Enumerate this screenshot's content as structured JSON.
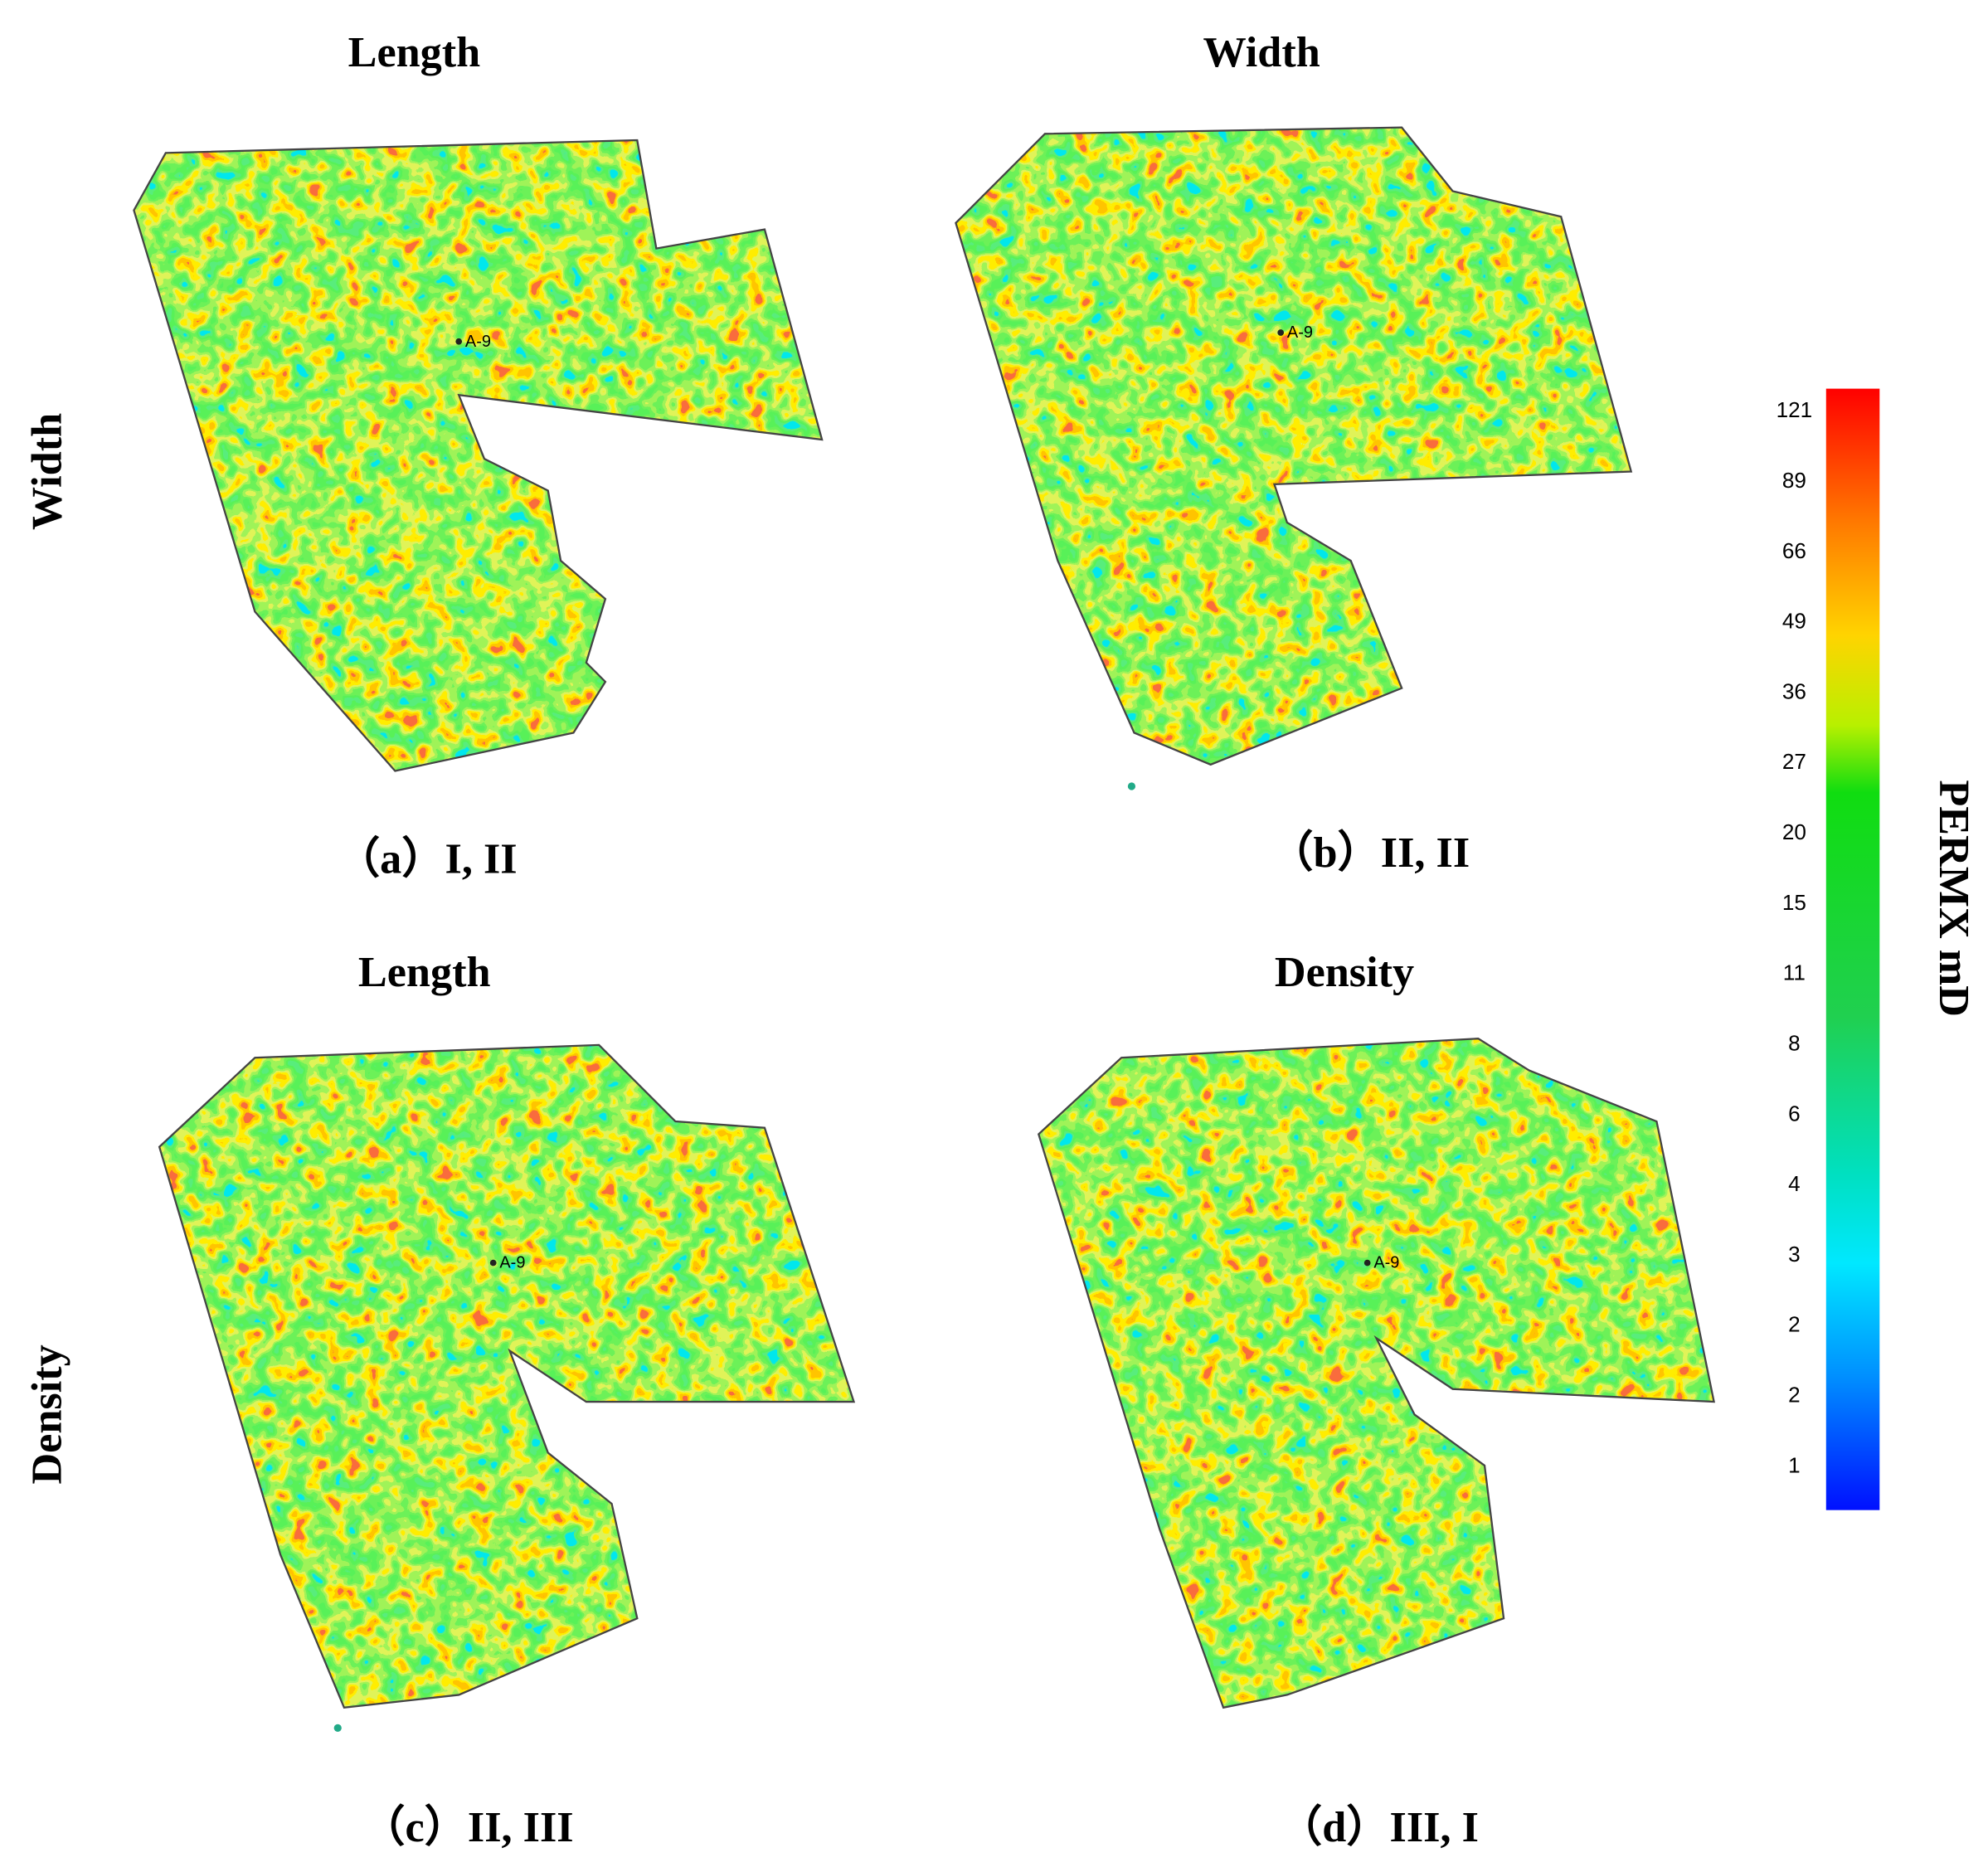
{
  "panels": [
    {
      "title": "Length",
      "caption": "（a）I, II",
      "well": "A-9"
    },
    {
      "title": "Width",
      "caption": "（b）II, II",
      "well": "A-9"
    },
    {
      "title": "Length",
      "caption": "（c）II, III",
      "well": "A-9"
    },
    {
      "title": "Density",
      "caption": "（d）III, I",
      "well": "A-9"
    }
  ],
  "row_labels": [
    "Width",
    "Density"
  ],
  "colorbar": {
    "label": "PERMX  mD",
    "ticks": [
      "121",
      "89",
      "66",
      "49",
      "36",
      "27",
      "20",
      "15",
      "11",
      "8",
      "6",
      "4",
      "3",
      "2",
      "2",
      "1"
    ]
  }
}
